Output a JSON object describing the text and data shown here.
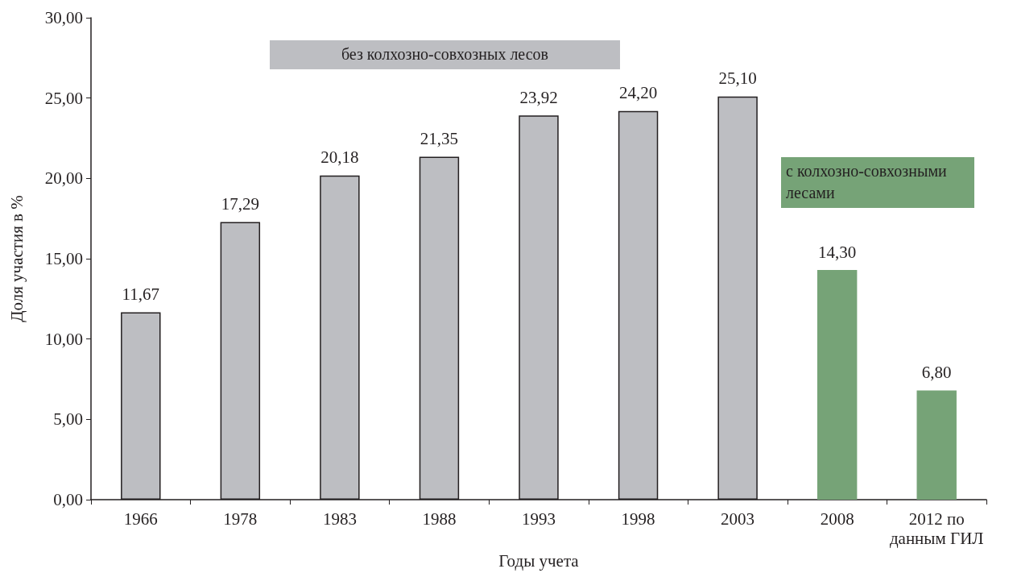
{
  "chart_data": {
    "type": "bar",
    "xlabel": "Годы учета",
    "ylabel": "Доля участия в %",
    "categories": [
      "1966",
      "1978",
      "1983",
      "1988",
      "1993",
      "1998",
      "2003",
      "2008",
      "2012 по данным ГИЛ"
    ],
    "series": [
      {
        "name": "без колхозно-совхозных лесов",
        "color": "#bdbec2",
        "values": [
          11.67,
          17.29,
          20.18,
          21.35,
          23.92,
          24.2,
          25.1,
          null,
          null
        ],
        "value_labels": [
          "11,67",
          "17,29",
          "20,18",
          "21,35",
          "23,92",
          "24,20",
          "25,10",
          null,
          null
        ]
      },
      {
        "name": "с колхозно-совхозными лесами",
        "color": "#76a377",
        "values": [
          null,
          null,
          null,
          null,
          null,
          null,
          null,
          14.3,
          6.8
        ],
        "value_labels": [
          null,
          null,
          null,
          null,
          null,
          null,
          null,
          "14,30",
          "6,80"
        ]
      }
    ],
    "ylim": [
      0,
      30
    ],
    "yticks": [
      {
        "value": 0,
        "label": "0,00"
      },
      {
        "value": 5,
        "label": "5,00"
      },
      {
        "value": 10,
        "label": "10,00"
      },
      {
        "value": 15,
        "label": "15,00"
      },
      {
        "value": 20,
        "label": "20,00"
      },
      {
        "value": 25,
        "label": "25,00"
      },
      {
        "value": 30,
        "label": "30,00"
      }
    ],
    "grid": false,
    "legend": false
  }
}
